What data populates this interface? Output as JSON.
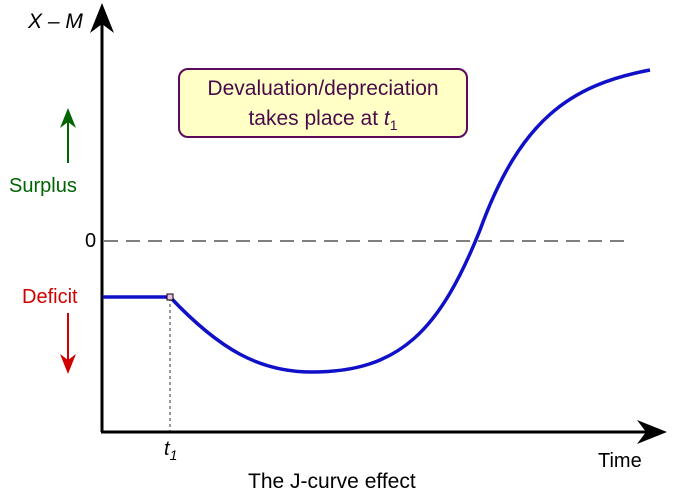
{
  "y_axis_label": "X – M",
  "x_axis_label": "Time",
  "zero_label": "0",
  "surplus_label": "Surplus",
  "deficit_label": "Deficit",
  "t1_label": "t",
  "t1_sub": "1",
  "annotation": {
    "line1": "Devaluation/depreciation",
    "line2": "takes place at",
    "t": "t",
    "sub": "1"
  },
  "caption": "The J-curve effect",
  "colors": {
    "curve": "#1010c8",
    "surplus": "#006400",
    "deficit": "#d00000",
    "annotation_fill": "#ffffc6",
    "annotation_border": "#5c0a5c",
    "zero_line": "#808080"
  }
}
